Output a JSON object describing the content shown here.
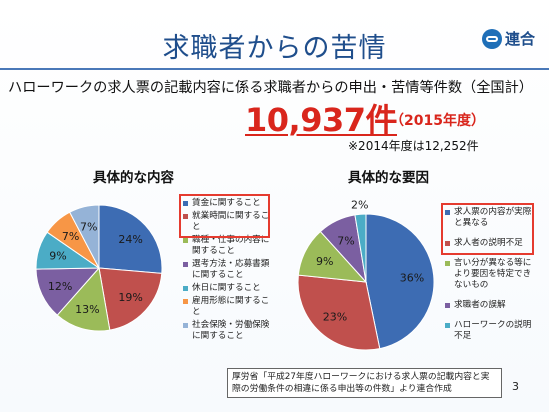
{
  "title": "求職者からの苦情",
  "logo_text": "連合",
  "subtitle": "ハローワークの求人票の記載内容に係る求職者からの申出・苦情等件数（全国計）",
  "total": {
    "value": "10,937件",
    "year": "（2015年度）"
  },
  "previous": "※2014年度は12,252件",
  "source": "厚労省「平成27年度ハローワークにおける求人票の記載内容と実際の労働条件の相違に係る申出等の件数」より連合作成",
  "page_number": "3",
  "chart_data": [
    {
      "type": "pie",
      "title": "具体的な内容",
      "legend": "right",
      "slices": [
        {
          "label": "賃金に関すること",
          "value": 24,
          "display": "24%",
          "color": "#3d6cb3"
        },
        {
          "label": "就業時間に関すること",
          "value": 19,
          "display": "19%",
          "color": "#c0504d"
        },
        {
          "label": "職種・仕事の内容に関すること",
          "value": 13,
          "display": "13%",
          "color": "#9bbb59"
        },
        {
          "label": "選考方法・応募書類に関すること",
          "value": 12,
          "display": "12%",
          "color": "#7b5fa1"
        },
        {
          "label": "休日に関すること",
          "value": 9,
          "display": "9%",
          "color": "#4bacc6"
        },
        {
          "label": "雇用形態に関すること",
          "value": 7,
          "display": "7%",
          "color": "#f79646"
        },
        {
          "label": "社会保険・労働保険に関すること",
          "value": 7,
          "display": "7%",
          "color": "#95b3d7"
        }
      ]
    },
    {
      "type": "pie",
      "title": "具体的な要因",
      "legend": "right",
      "slices": [
        {
          "label": "求人票の内容が実際と異なる",
          "value": 36,
          "display": "36%",
          "color": "#3d6cb3"
        },
        {
          "label": "求人者の説明不足",
          "value": 23,
          "display": "23%",
          "color": "#c0504d"
        },
        {
          "label": "言い分が異なる等により要因を特定できないもの",
          "value": 9,
          "display": "9%",
          "color": "#9bbb59"
        },
        {
          "label": "求職者の誤解",
          "value": 7,
          "display": "7%",
          "color": "#7b5fa1"
        },
        {
          "label": "ハローワークの説明不足",
          "value": 2,
          "display": "2%",
          "color": "#4bacc6"
        }
      ]
    }
  ]
}
